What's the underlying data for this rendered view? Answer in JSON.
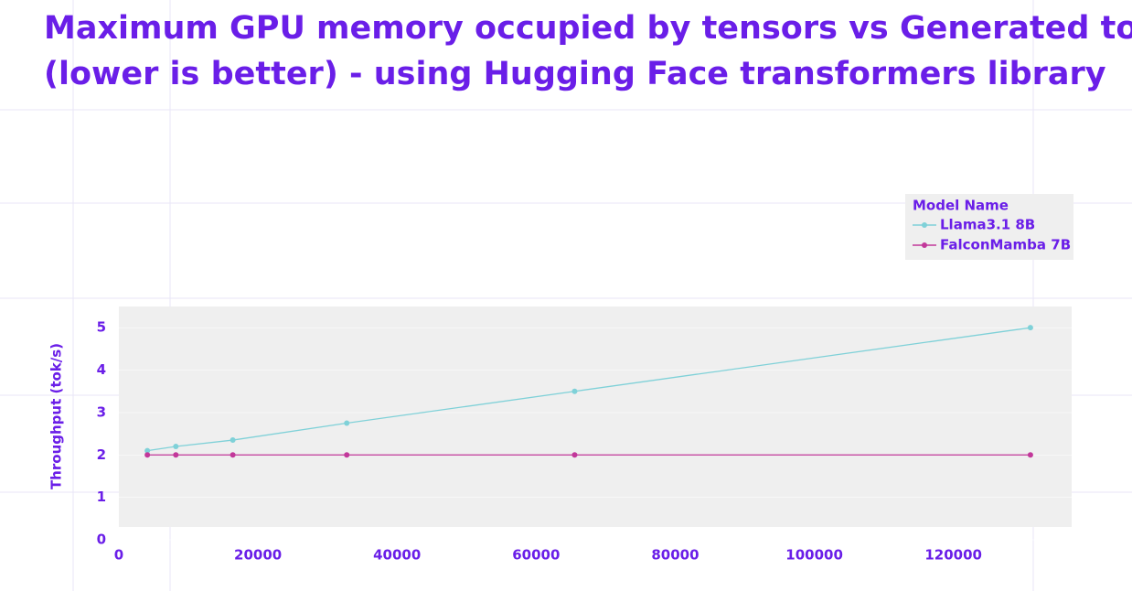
{
  "chart_data": {
    "type": "line",
    "title": [
      "Maximum GPU memory occupied by tensors vs Generated tokens",
      "(lower is better) - using Hugging Face transformers library"
    ],
    "y_label": "Throughput (tok/s)",
    "legend_title": "Model Name",
    "legend": "top-right",
    "x": [
      4096,
      8192,
      16384,
      32768,
      65536,
      131072
    ],
    "series": [
      {
        "name": "Llama3.1 8B",
        "color": "#7fd1d8",
        "values": [
          2.1,
          2.2,
          2.35,
          2.75,
          3.5,
          5.0
        ]
      },
      {
        "name": "FalconMamba 7B",
        "color": "#c2389a",
        "values": [
          2.0,
          2.0,
          2.0,
          2.0,
          2.0,
          2.0
        ]
      }
    ],
    "xlim": [
      0,
      137000
    ],
    "xticks": [
      0,
      20000,
      40000,
      60000,
      80000,
      100000,
      120000
    ],
    "ylim": [
      0,
      5.5
    ],
    "yticks": [
      0,
      1,
      2,
      3,
      4,
      5
    ],
    "grid": true
  }
}
